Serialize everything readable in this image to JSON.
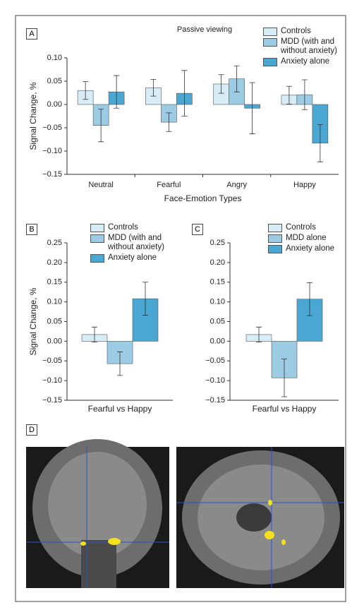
{
  "chart_data": [
    {
      "type": "bar",
      "panel": "A",
      "title": "Passive viewing",
      "xlabel": "Face-Emotion Types",
      "ylabel": "Signal Change, %",
      "categories": [
        "Neutral",
        "Fearful",
        "Angry",
        "Happy"
      ],
      "series": [
        {
          "name": "Controls",
          "color": "#d8ecf6",
          "values": [
            0.03,
            0.036,
            0.044,
            0.02
          ],
          "errors": [
            0.019,
            0.018,
            0.02,
            0.019
          ]
        },
        {
          "name": "MDD (with and without anxiety)",
          "color": "#9ccbe3",
          "values": [
            -0.045,
            -0.038,
            0.055,
            0.021
          ],
          "errors": [
            0.035,
            0.02,
            0.028,
            0.032
          ]
        },
        {
          "name": "Anxiety alone",
          "color": "#49a7d1",
          "values": [
            0.027,
            0.024,
            -0.008,
            -0.083
          ],
          "errors": [
            0.035,
            0.049,
            0.055,
            0.04
          ]
        }
      ],
      "ylim": [
        -0.15,
        0.1
      ],
      "yticks": [
        {
          "value": -0.15,
          "label": "−0.15"
        },
        {
          "value": -0.1,
          "label": "−0.10"
        },
        {
          "value": -0.05,
          "label": "−0.05"
        },
        {
          "value": 0,
          "label": "0.00"
        },
        {
          "value": 0.05,
          "label": "0.05"
        },
        {
          "value": 0.1,
          "label": "0.10"
        }
      ]
    },
    {
      "type": "bar",
      "panel": "B",
      "xlabel": "Fearful vs Happy",
      "ylabel": "Signal Change, %",
      "categories": [
        null
      ],
      "series": [
        {
          "name": "Controls",
          "color": "#d8ecf6",
          "values": [
            0.017
          ],
          "errors": [
            0.019
          ]
        },
        {
          "name": "MDD (with and without anxiety)",
          "color": "#9ccbe3",
          "values": [
            -0.057
          ],
          "errors": [
            0.03
          ]
        },
        {
          "name": "Anxiety alone",
          "color": "#49a7d1",
          "values": [
            0.108
          ],
          "errors": [
            0.042
          ]
        }
      ],
      "ylim": [
        -0.15,
        0.25
      ],
      "yticks": [
        {
          "value": -0.15,
          "label": "−0.15"
        },
        {
          "value": -0.1,
          "label": "−0.10"
        },
        {
          "value": -0.05,
          "label": "−0.05"
        },
        {
          "value": 0,
          "label": "0.00"
        },
        {
          "value": 0.05,
          "label": "0.05"
        },
        {
          "value": 0.1,
          "label": "0.10"
        },
        {
          "value": 0.15,
          "label": "0.15"
        },
        {
          "value": 0.2,
          "label": "0.20"
        },
        {
          "value": 0.25,
          "label": "0.25"
        }
      ]
    },
    {
      "type": "bar",
      "panel": "C",
      "xlabel": "Fearful vs Happy",
      "categories": [
        null
      ],
      "series": [
        {
          "name": "Controls",
          "color": "#d8ecf6",
          "values": [
            0.017
          ],
          "errors": [
            0.019
          ]
        },
        {
          "name": "MDD alone",
          "color": "#9ccbe3",
          "values": [
            -0.093
          ],
          "errors": [
            0.048
          ]
        },
        {
          "name": "Anxiety alone",
          "color": "#49a7d1",
          "values": [
            0.107
          ],
          "errors": [
            0.042
          ]
        }
      ],
      "ylim": [
        -0.15,
        0.25
      ],
      "yticks": [
        {
          "value": -0.15,
          "label": "−0.15"
        },
        {
          "value": -0.1,
          "label": "−0.10"
        },
        {
          "value": -0.05,
          "label": "−0.05"
        },
        {
          "value": 0,
          "label": "0.00"
        },
        {
          "value": 0.05,
          "label": "0.05"
        },
        {
          "value": 0.1,
          "label": "0.10"
        },
        {
          "value": 0.15,
          "label": "0.15"
        },
        {
          "value": 0.2,
          "label": "0.20"
        },
        {
          "value": 0.25,
          "label": "0.25"
        }
      ]
    }
  ],
  "panel_d": {
    "label": "D"
  }
}
